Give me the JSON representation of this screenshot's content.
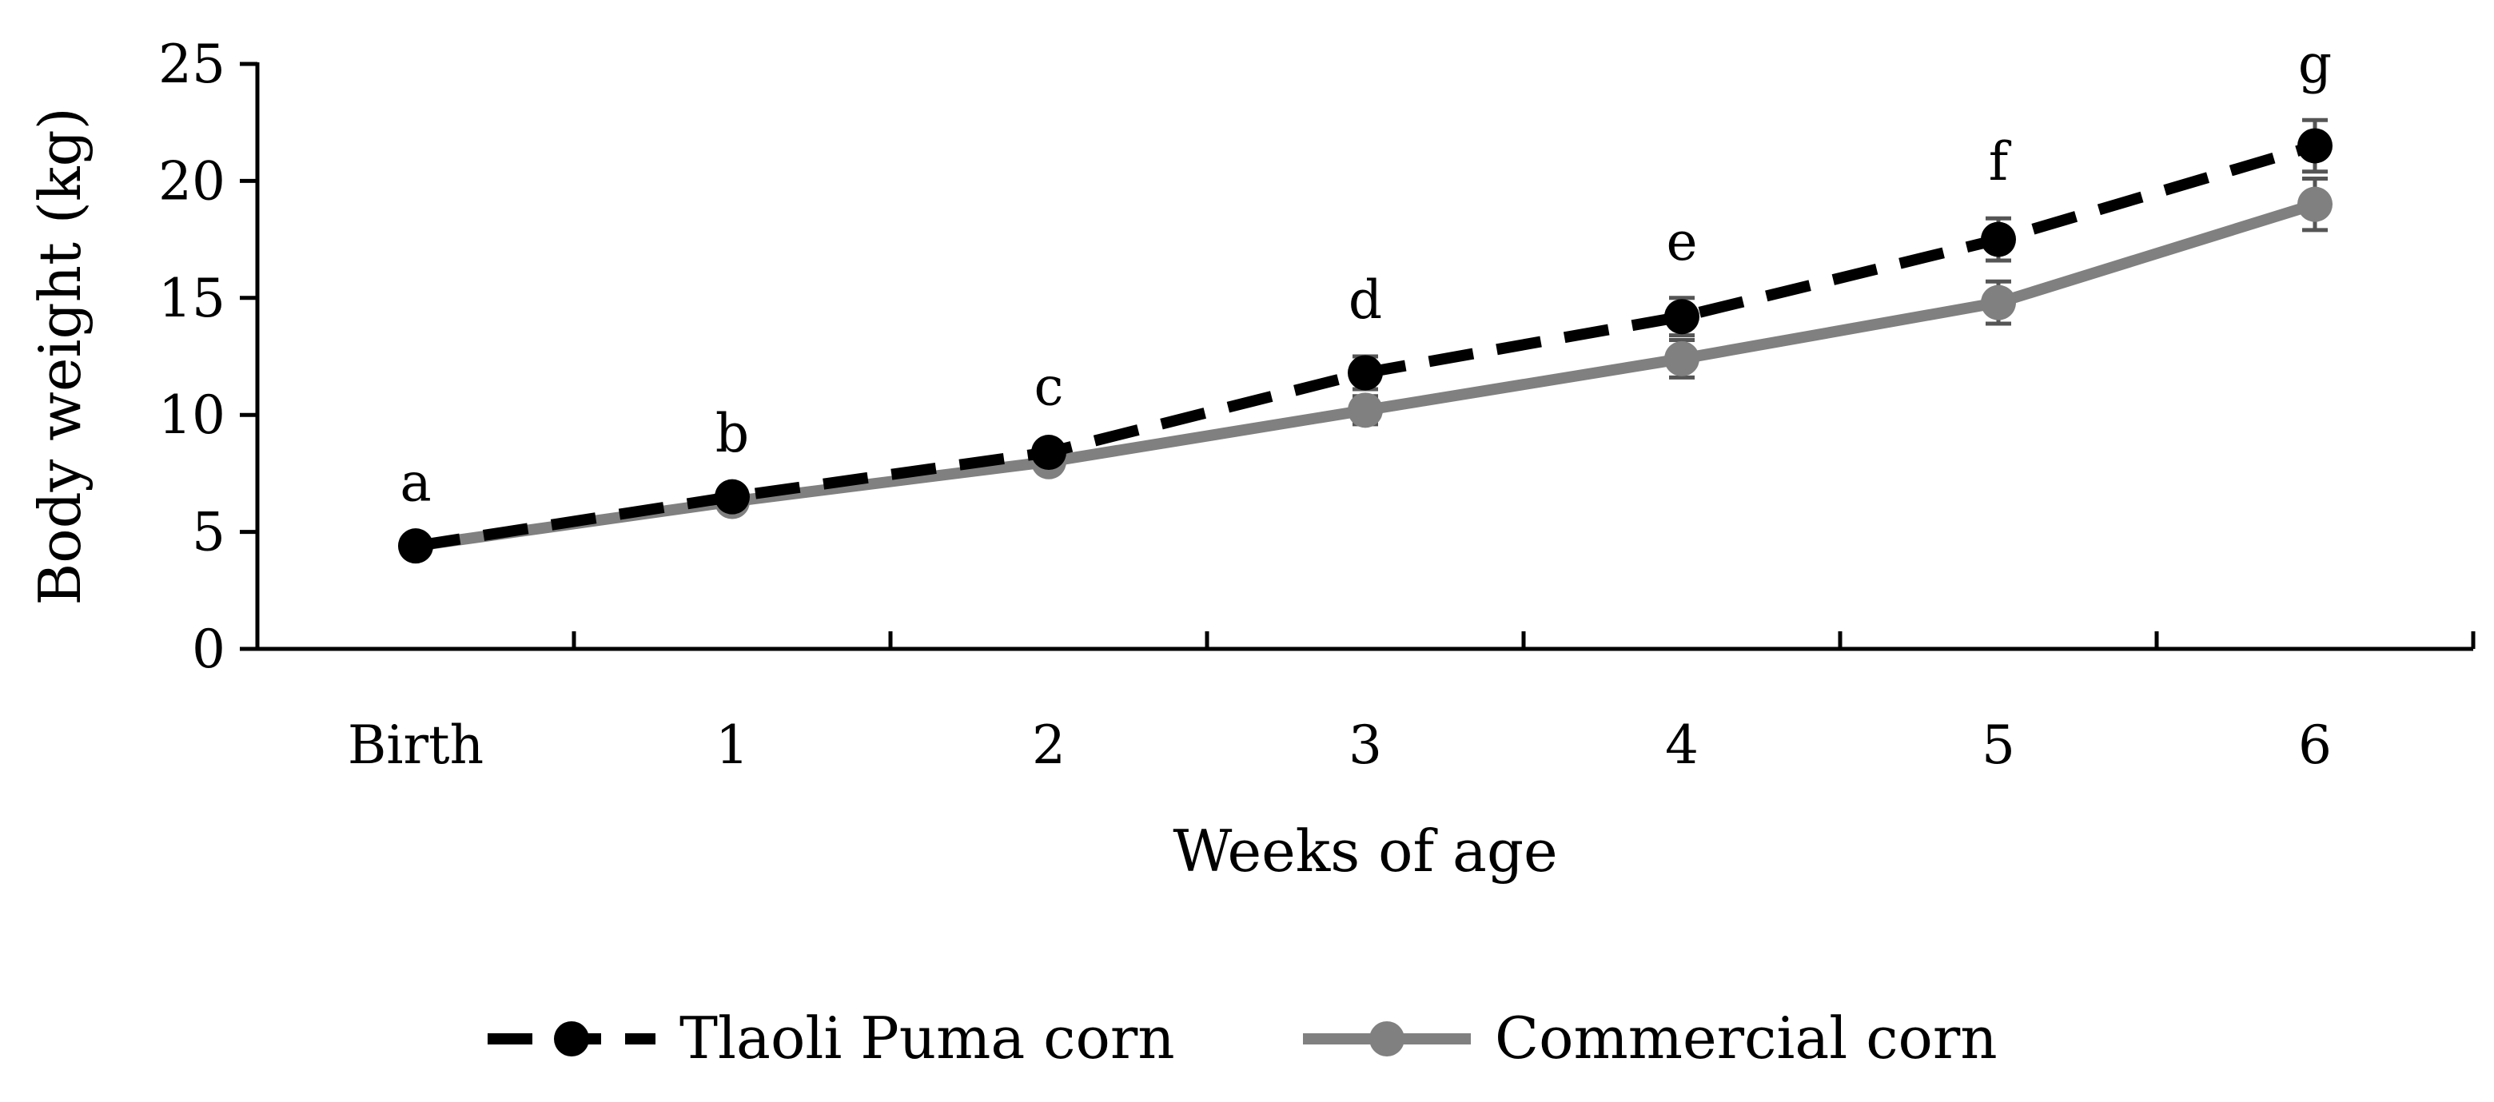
{
  "chart_data": {
    "type": "line",
    "x_categories": [
      "Birth",
      "1",
      "2",
      "3",
      "4",
      "5",
      "6"
    ],
    "xlabel": "Weeks of age",
    "ylabel": "Body weight (kg)",
    "ylim": [
      0,
      25
    ],
    "yticks": [
      0,
      5,
      10,
      15,
      20,
      25
    ],
    "grid": false,
    "legend_position": "bottom",
    "point_labels": [
      "a",
      "b",
      "c",
      "d",
      "e",
      "f",
      "g"
    ],
    "series": [
      {
        "name": "Tlaoli Puma corn",
        "values": [
          4.4,
          6.5,
          8.4,
          11.8,
          14.2,
          17.5,
          21.5
        ],
        "errors": [
          0.3,
          0.3,
          0.4,
          0.7,
          0.8,
          0.9,
          1.1
        ],
        "color": "#000000",
        "line_style": "dashed"
      },
      {
        "name": "Commercial corn",
        "values": [
          4.4,
          6.3,
          8.0,
          10.2,
          12.4,
          14.8,
          19.0
        ],
        "errors": [
          0.3,
          0.3,
          0.4,
          0.6,
          0.8,
          0.9,
          1.1
        ],
        "color": "#808080",
        "line_style": "solid"
      }
    ]
  }
}
